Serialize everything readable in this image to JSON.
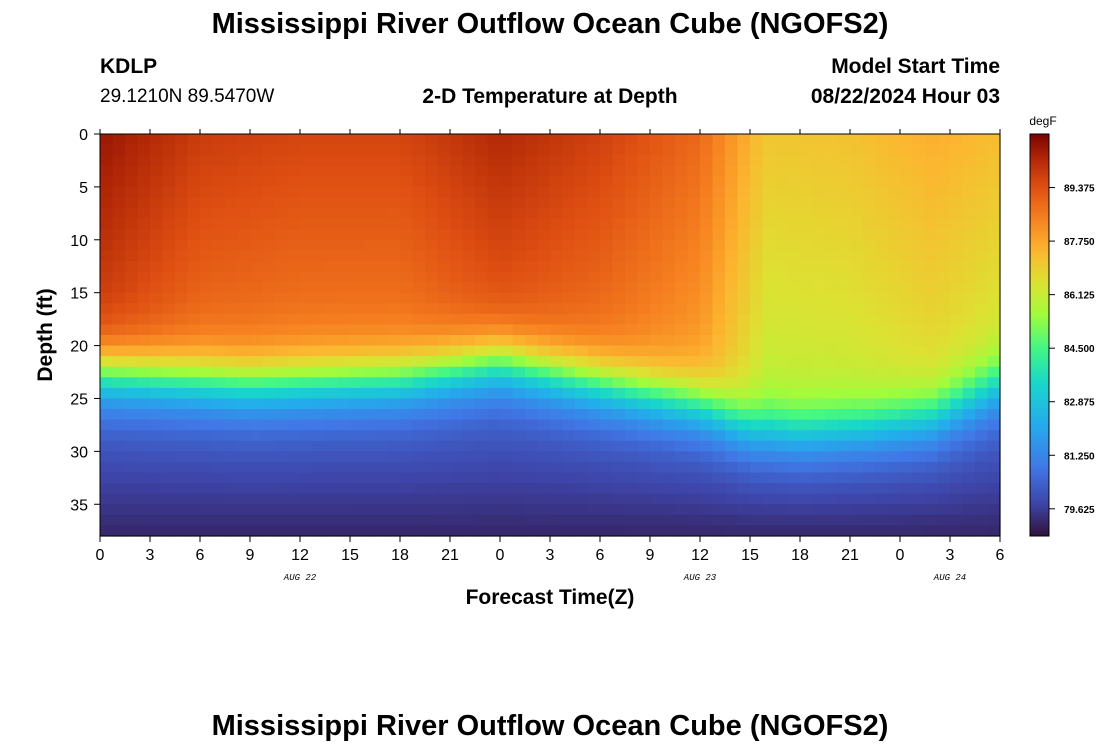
{
  "page": {
    "title": "Mississippi River Outflow Ocean Cube (NGOFS2)",
    "footer_title": "Mississippi River Outflow Ocean Cube (NGOFS2)",
    "station_id": "KDLP",
    "station_coords": "29.1210N  89.5470W",
    "plot_subtitle": "2-D Temperature at Depth",
    "model_start_label": "Model Start Time",
    "model_start_value": "08/22/2024 Hour 03"
  },
  "chart_data": {
    "type": "heatmap",
    "title": "2-D Temperature at Depth",
    "xlabel": "Forecast Time(Z)",
    "ylabel": "Depth (ft)",
    "x_ticks": [
      "0",
      "3",
      "6",
      "9",
      "12",
      "15",
      "18",
      "21",
      "0",
      "3",
      "6",
      "9",
      "12",
      "15",
      "18",
      "21",
      "0",
      "3",
      "6"
    ],
    "x_range_hours": [
      0,
      54
    ],
    "date_labels": [
      {
        "text": "AUG 22",
        "hour": 12
      },
      {
        "text": "AUG 23",
        "hour": 36
      },
      {
        "text": "AUG 24",
        "hour": 51
      }
    ],
    "y_ticks": [
      0,
      5,
      10,
      15,
      20,
      25,
      30,
      35
    ],
    "ylim": [
      0,
      38
    ],
    "colorbar": {
      "unit": "degF",
      "ticks": [
        "89.375",
        "87.750",
        "86.125",
        "84.500",
        "82.875",
        "81.250",
        "79.625"
      ],
      "range": [
        78.8,
        91.0
      ]
    },
    "thermocline_depth_ft": [
      {
        "hour": 0,
        "depth": 22.5
      },
      {
        "hour": 9,
        "depth": 23.5
      },
      {
        "hour": 18,
        "depth": 23.0
      },
      {
        "hour": 24,
        "depth": 21.5
      },
      {
        "hour": 30,
        "depth": 23.5
      },
      {
        "hour": 36,
        "depth": 25.5
      },
      {
        "hour": 39,
        "depth": 27.5
      },
      {
        "hour": 42,
        "depth": 28.0
      },
      {
        "hour": 46,
        "depth": 27.5
      },
      {
        "hour": 50,
        "depth": 26.5
      },
      {
        "hour": 54,
        "depth": 23.5
      }
    ],
    "surface_temp_degF": [
      {
        "hour": 0,
        "temp": 90.6
      },
      {
        "hour": 6,
        "temp": 89.8
      },
      {
        "hour": 12,
        "temp": 89.6
      },
      {
        "hour": 18,
        "temp": 89.6
      },
      {
        "hour": 24,
        "temp": 90.2
      },
      {
        "hour": 30,
        "temp": 89.7
      },
      {
        "hour": 36,
        "temp": 88.9
      },
      {
        "hour": 40,
        "temp": 87.1
      },
      {
        "hour": 45,
        "temp": 87.2
      },
      {
        "hour": 50,
        "temp": 87.6
      },
      {
        "hour": 54,
        "temp": 87.3
      }
    ],
    "bottom_temp_degF": 79.2
  }
}
